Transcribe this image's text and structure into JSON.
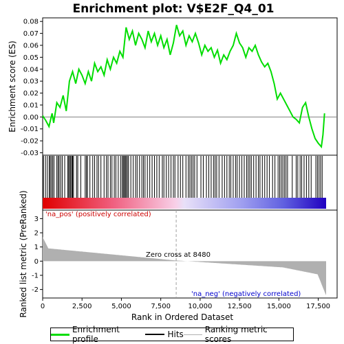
{
  "chart_data": {
    "type": "line",
    "title": "Enrichment plot: V$E2F_Q4_01",
    "xlabel": "Rank in Ordered Dataset",
    "ylabel_top": "Enrichment score (ES)",
    "ylabel_bottom": "Ranked list metric (PreRanked)",
    "xlim": [
      0,
      18000
    ],
    "ylim_es": [
      -0.032,
      0.083
    ],
    "ylim_metric": [
      -2.6,
      3.6
    ],
    "x_ticks": [
      0,
      2500,
      5000,
      7500,
      10000,
      12500,
      15000,
      17500
    ],
    "x_tick_labels": [
      "0",
      "2,500",
      "5,000",
      "7,500",
      "10,000",
      "12,500",
      "15,000",
      "17,500"
    ],
    "es_ticks": [
      -0.03,
      -0.02,
      -0.01,
      0.0,
      0.01,
      0.02,
      0.03,
      0.04,
      0.05,
      0.06,
      0.07,
      0.08
    ],
    "es_tick_labels": [
      "-0.03",
      "-0.02",
      "-0.01",
      "0.00",
      "0.01",
      "0.02",
      "0.03",
      "0.04",
      "0.05",
      "0.06",
      "0.07",
      "0.08"
    ],
    "metric_ticks": [
      -2,
      -1,
      0,
      1,
      2,
      3
    ],
    "metric_tick_labels": [
      "-2",
      "-1",
      "0",
      "1",
      "2",
      "3"
    ],
    "enrichment_profile": {
      "x": [
        0,
        200,
        400,
        600,
        700,
        900,
        1100,
        1300,
        1500,
        1700,
        1900,
        2100,
        2300,
        2500,
        2700,
        2900,
        3100,
        3300,
        3500,
        3700,
        3900,
        4100,
        4300,
        4500,
        4700,
        4900,
        5100,
        5300,
        5500,
        5700,
        5900,
        6100,
        6300,
        6500,
        6700,
        6900,
        7100,
        7300,
        7500,
        7700,
        7900,
        8100,
        8300,
        8500,
        8700,
        8900,
        9100,
        9300,
        9500,
        9700,
        9900,
        10100,
        10300,
        10500,
        10700,
        10900,
        11100,
        11300,
        11500,
        11700,
        11900,
        12100,
        12300,
        12500,
        12700,
        12900,
        13100,
        13300,
        13500,
        13700,
        13900,
        14100,
        14300,
        14500,
        14700,
        14900,
        15100,
        15300,
        15500,
        15700,
        15900,
        16100,
        16300,
        16500,
        16700,
        16900,
        17100,
        17300,
        17500,
        17700,
        17800,
        17900
      ],
      "y": [
        0.001,
        -0.003,
        -0.008,
        0.003,
        -0.005,
        0.012,
        0.008,
        0.018,
        0.005,
        0.03,
        0.038,
        0.028,
        0.04,
        0.035,
        0.028,
        0.038,
        0.03,
        0.045,
        0.038,
        0.042,
        0.035,
        0.048,
        0.04,
        0.05,
        0.045,
        0.055,
        0.05,
        0.075,
        0.065,
        0.072,
        0.06,
        0.07,
        0.065,
        0.058,
        0.072,
        0.063,
        0.07,
        0.06,
        0.068,
        0.058,
        0.065,
        0.052,
        0.062,
        0.077,
        0.068,
        0.072,
        0.06,
        0.068,
        0.063,
        0.07,
        0.062,
        0.052,
        0.06,
        0.055,
        0.058,
        0.05,
        0.056,
        0.045,
        0.052,
        0.048,
        0.055,
        0.06,
        0.07,
        0.062,
        0.058,
        0.05,
        0.058,
        0.055,
        0.06,
        0.052,
        0.046,
        0.042,
        0.045,
        0.038,
        0.028,
        0.015,
        0.02,
        0.015,
        0.01,
        0.005,
        0.0,
        -0.002,
        -0.005,
        0.008,
        0.012,
        0.0,
        -0.01,
        -0.018,
        -0.022,
        -0.025,
        -0.015,
        0.003
      ]
    },
    "hits_positive_dense_ranges": [
      [
        0,
        8480
      ]
    ],
    "hit_positions": [
      50,
      180,
      300,
      420,
      480,
      560,
      640,
      720,
      900,
      980,
      1050,
      1150,
      1250,
      1400,
      1600,
      1650,
      1720,
      1780,
      1850,
      1900,
      1960,
      2150,
      2230,
      2420,
      2700,
      2780,
      2850,
      3000,
      3180,
      3300,
      3450,
      3550,
      3700,
      3900,
      4050,
      4150,
      4300,
      4400,
      4550,
      4650,
      4800,
      4950,
      5050,
      5120,
      5180,
      5250,
      5300,
      5380,
      5450,
      5600,
      5750,
      5900,
      6000,
      6150,
      6300,
      6400,
      6500,
      6650,
      6800,
      6950,
      7100,
      7250,
      7400,
      7600,
      7700,
      7850,
      8000,
      8150,
      8300,
      8400,
      8600,
      8750,
      8900,
      9100,
      9250,
      9350,
      9450,
      9550,
      9650,
      9800,
      10050,
      10200,
      10400,
      10550,
      10700,
      10850,
      10950,
      11050,
      11200,
      11400,
      11550,
      11700,
      11850,
      11950,
      12100,
      12250,
      12350,
      12500,
      12650,
      12800,
      12950,
      13050,
      13150,
      13250,
      13400,
      13550,
      13700,
      13800,
      13950,
      14100,
      14250,
      14400,
      14600,
      14750,
      14950,
      15050,
      15150,
      15250,
      15350,
      15450,
      15550,
      15850,
      16100,
      16200,
      16350,
      16450,
      16600,
      16750,
      16900,
      17050,
      17350,
      17450,
      17550,
      17650,
      17750
    ],
    "zero_cross_rank": 8480,
    "annotations": {
      "na_pos": "'na_pos' (positively correlated)",
      "na_neg": "'na_neg' (negatively correlated)",
      "zero_cross": "Zero cross at 8480"
    },
    "colors": {
      "profile": "#00dd00",
      "hits": "#000000",
      "metric_fill": "#b0b0b0",
      "pos_label": "#cc0000",
      "neg_label": "#0000cc"
    }
  },
  "legend": {
    "profile_label": "Enrichment profile",
    "hits_label": "Hits",
    "metric_label": "Ranking metric scores"
  }
}
